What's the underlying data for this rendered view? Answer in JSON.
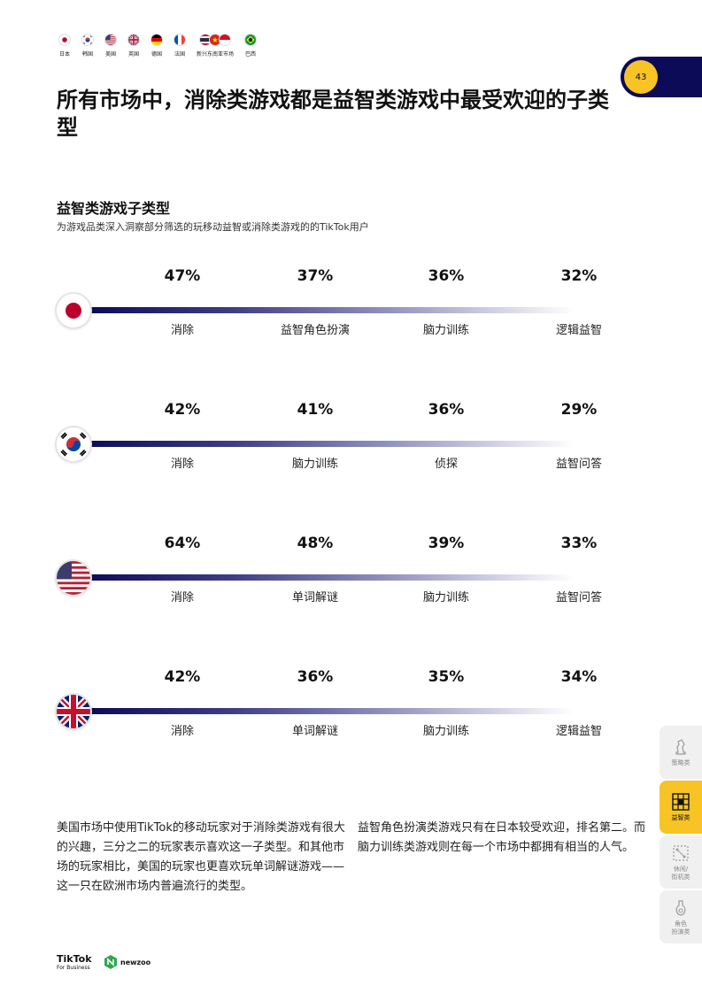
{
  "header": {
    "flags": [
      {
        "name": "japan",
        "label": "日本"
      },
      {
        "name": "korea",
        "label": "韩国"
      },
      {
        "name": "usa",
        "label": "美国"
      },
      {
        "name": "uk",
        "label": "英国"
      },
      {
        "name": "germany",
        "label": "德国"
      },
      {
        "name": "france",
        "label": "法国"
      },
      {
        "name": "sea",
        "label": "新兴东南亚市场"
      },
      {
        "name": "brazil",
        "label": "巴西"
      }
    ],
    "page_number": "43"
  },
  "title": "所有市场中，消除类游戏都是益智类游戏中最受欢迎的子类型",
  "section": {
    "title": "益智类游戏子类型",
    "subtitle": "为游戏品类深入洞察部分筛选的玩移动益智或消除类游戏的的TikTok用户"
  },
  "markets": [
    {
      "flag": "japan",
      "items": [
        {
          "pct": "47%",
          "label": "消除"
        },
        {
          "pct": "37%",
          "label": "益智角色扮演"
        },
        {
          "pct": "36%",
          "label": "脑力训练"
        },
        {
          "pct": "32%",
          "label": "逻辑益智"
        }
      ]
    },
    {
      "flag": "korea",
      "items": [
        {
          "pct": "42%",
          "label": "消除"
        },
        {
          "pct": "41%",
          "label": "脑力训练"
        },
        {
          "pct": "36%",
          "label": "侦探"
        },
        {
          "pct": "29%",
          "label": "益智问答"
        }
      ]
    },
    {
      "flag": "usa",
      "items": [
        {
          "pct": "64%",
          "label": "消除"
        },
        {
          "pct": "48%",
          "label": "单词解谜"
        },
        {
          "pct": "39%",
          "label": "脑力训练"
        },
        {
          "pct": "33%",
          "label": "益智问答"
        }
      ]
    },
    {
      "flag": "uk",
      "items": [
        {
          "pct": "42%",
          "label": "消除"
        },
        {
          "pct": "36%",
          "label": "单词解谜"
        },
        {
          "pct": "35%",
          "label": "脑力训练"
        },
        {
          "pct": "34%",
          "label": "逻辑益智"
        }
      ]
    }
  ],
  "body": {
    "left": "美国市场中使用TikTok的移动玩家对于消除类游戏有很大的兴趣，三分之二的玩家表示喜欢这一子类型。和其他市场的玩家相比，美国的玩家也更喜欢玩单词解谜游戏——这一只在欧洲市场内普遍流行的类型。",
    "right": "益智角色扮演类游戏只有在日本较受欢迎，排名第二。而脑力训练类游戏则在每一个市场中都拥有相当的人气。"
  },
  "side_nav": [
    {
      "label": "策略类",
      "icon": "chess-knight-icon",
      "active": false
    },
    {
      "label": "益智类",
      "icon": "puzzle-grid-icon",
      "active": true
    },
    {
      "label": "休闲/\n街机类",
      "icon": "arcade-icon",
      "active": false
    },
    {
      "label": "角色\n扮演类",
      "icon": "potion-icon",
      "active": false
    }
  ],
  "footer": {
    "tiktok": "TikTok",
    "tiktok_sub": "For Business",
    "newzoo": "newzoo"
  },
  "colors": {
    "navy": "#0b0b58",
    "yellow": "#f7c325"
  }
}
